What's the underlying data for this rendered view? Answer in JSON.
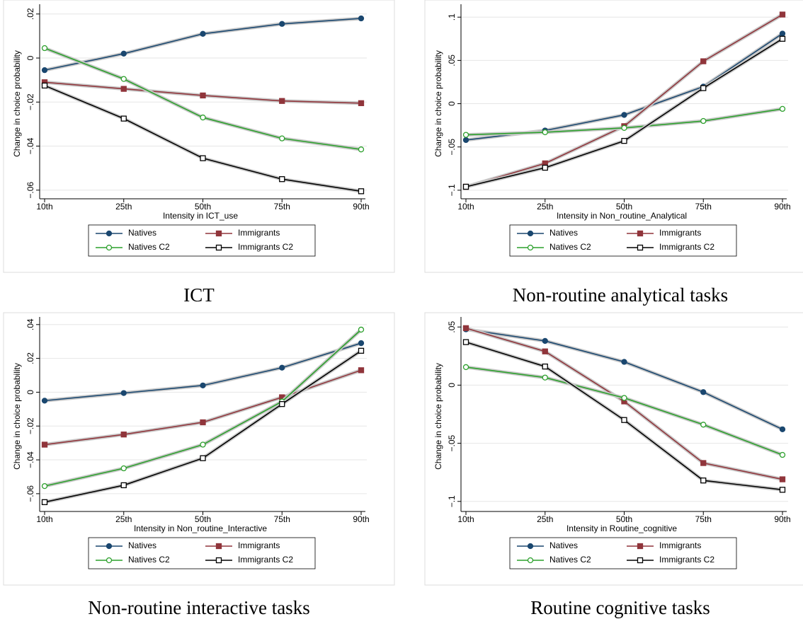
{
  "chart_data": [
    {
      "type": "line",
      "caption": "ICT",
      "y_label": "Change in choice probability",
      "x_label": "Intensity in ICT_use",
      "categories": [
        "10th",
        "25th",
        "50th",
        "75th",
        "90th"
      ],
      "ylim": [
        -0.062,
        0.0225
      ],
      "yticks": [
        {
          "value": -0.06,
          "label": "−.06"
        },
        {
          "value": -0.04,
          "label": "−.04"
        },
        {
          "value": -0.02,
          "label": "−.02"
        },
        0,
        {
          "value": 0.02,
          "label": ".02"
        }
      ],
      "grid": true,
      "series": [
        {
          "name": "Natives",
          "color": "#1a476f",
          "marker": "circle",
          "values": [
            -0.0055,
            0.002,
            0.011,
            0.0155,
            0.018
          ]
        },
        {
          "name": "Immigrants",
          "color": "#90353b",
          "marker": "square",
          "values": [
            -0.011,
            -0.014,
            -0.017,
            -0.0195,
            -0.0205
          ]
        },
        {
          "name": "Natives C2",
          "color": "#2ca02c",
          "marker": "circle-open",
          "values": [
            0.0045,
            -0.0095,
            -0.027,
            -0.0365,
            -0.0415
          ]
        },
        {
          "name": "Immigrants C2",
          "color": "#000000",
          "marker": "square-open",
          "values": [
            -0.0125,
            -0.0275,
            -0.0455,
            -0.055,
            -0.0605
          ]
        }
      ]
    },
    {
      "type": "line",
      "caption": "Non-routine analytical tasks",
      "y_label": "Change in choice probability",
      "x_label": "Intensity in Non_routine_Analytical",
      "categories": [
        "10th",
        "25th",
        "50th",
        "75th",
        "90th"
      ],
      "ylim": [
        -0.105,
        0.11
      ],
      "yticks": [
        {
          "value": -0.1,
          "label": "−.1"
        },
        {
          "value": -0.05,
          "label": "−.05"
        },
        0,
        {
          "value": 0.05,
          "label": ".05"
        },
        {
          "value": 0.1,
          "label": ".1"
        }
      ],
      "grid": true,
      "series": [
        {
          "name": "Natives",
          "color": "#1a476f",
          "marker": "circle",
          "values": [
            -0.042,
            -0.031,
            -0.013,
            0.0197,
            0.081
          ]
        },
        {
          "name": "Immigrants",
          "color": "#90353b",
          "marker": "square",
          "values": [
            -0.096,
            -0.069,
            -0.026,
            0.049,
            0.103
          ]
        },
        {
          "name": "Natives C2",
          "color": "#2ca02c",
          "marker": "circle-open",
          "values": [
            -0.036,
            -0.033,
            -0.028,
            -0.02,
            -0.006
          ]
        },
        {
          "name": "Immigrants C2",
          "color": "#000000",
          "marker": "square-open",
          "values": [
            -0.096,
            -0.074,
            -0.043,
            0.018,
            0.075
          ]
        }
      ]
    },
    {
      "type": "line",
      "caption": "Non-routine interactive tasks",
      "y_label": "Change in choice probability",
      "x_label": "Intensity in Non_routine_Interactive",
      "categories": [
        "10th",
        "25th",
        "50th",
        "75th",
        "90th"
      ],
      "ylim": [
        -0.068,
        0.042
      ],
      "yticks": [
        {
          "value": -0.06,
          "label": "−.06"
        },
        {
          "value": -0.04,
          "label": "−.04"
        },
        {
          "value": -0.02,
          "label": "−.02"
        },
        0,
        {
          "value": 0.02,
          "label": ".02"
        },
        {
          "value": 0.04,
          "label": ".04"
        }
      ],
      "grid": true,
      "series": [
        {
          "name": "Natives",
          "color": "#1a476f",
          "marker": "circle",
          "values": [
            -0.005,
            -0.0005,
            0.004,
            0.0145,
            0.029
          ]
        },
        {
          "name": "Immigrants",
          "color": "#90353b",
          "marker": "square",
          "values": [
            -0.031,
            -0.025,
            -0.0178,
            -0.003,
            0.013
          ]
        },
        {
          "name": "Natives C2",
          "color": "#2ca02c",
          "marker": "circle-open",
          "values": [
            -0.0555,
            -0.045,
            -0.031,
            -0.0055,
            0.037
          ]
        },
        {
          "name": "Immigrants C2",
          "color": "#000000",
          "marker": "square-open",
          "values": [
            -0.065,
            -0.055,
            -0.039,
            -0.007,
            0.0245
          ]
        }
      ]
    },
    {
      "type": "line",
      "caption": "Routine cognitive tasks",
      "y_label": "Change in choice probability",
      "x_label": "Intensity in Routine_cognitive",
      "categories": [
        "10th",
        "25th",
        "50th",
        "75th",
        "90th"
      ],
      "ylim": [
        -0.105,
        0.055
      ],
      "yticks": [
        {
          "value": -0.1,
          "label": "−.1"
        },
        {
          "value": -0.05,
          "label": "−.05"
        },
        0,
        {
          "value": 0.05,
          "label": ".05"
        }
      ],
      "grid": true,
      "series": [
        {
          "name": "Natives",
          "color": "#1a476f",
          "marker": "circle",
          "values": [
            0.048,
            0.038,
            0.02,
            -0.006,
            -0.038
          ]
        },
        {
          "name": "Immigrants",
          "color": "#90353b",
          "marker": "square",
          "values": [
            0.049,
            0.029,
            -0.014,
            -0.067,
            -0.081
          ]
        },
        {
          "name": "Natives C2",
          "color": "#2ca02c",
          "marker": "circle-open",
          "values": [
            0.0155,
            0.0065,
            -0.011,
            -0.034,
            -0.06
          ]
        },
        {
          "name": "Immigrants C2",
          "color": "#000000",
          "marker": "square-open",
          "values": [
            0.037,
            0.016,
            -0.03,
            -0.082,
            -0.09
          ]
        }
      ]
    }
  ]
}
